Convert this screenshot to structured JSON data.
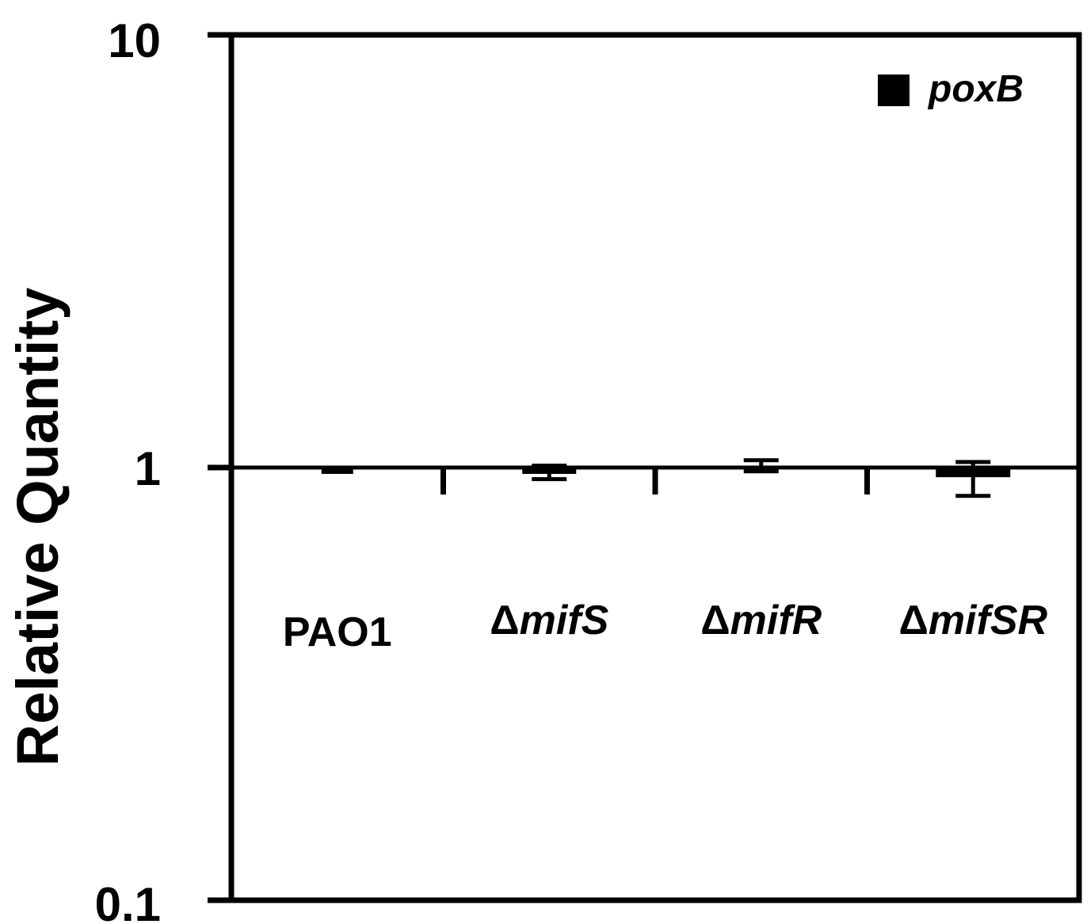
{
  "chart_data": {
    "type": "bar",
    "scale": "log",
    "ylim": [
      0.1,
      10
    ],
    "yticks": [
      {
        "value": 10,
        "label": "10"
      },
      {
        "value": 1,
        "label": "1"
      },
      {
        "value": 0.1,
        "label": "0.1"
      }
    ],
    "ylabel": "Relative Quantity",
    "xlabel": "",
    "title": "",
    "baseline": 1,
    "categories": [
      {
        "prefix": "",
        "name": "PAO1",
        "italic": false
      },
      {
        "prefix": "Δ",
        "name": "mifS",
        "italic": true
      },
      {
        "prefix": "Δ",
        "name": "mifR",
        "italic": true
      },
      {
        "prefix": "Δ",
        "name": "mifSR",
        "italic": true
      }
    ],
    "series": [
      {
        "name": "poxB",
        "color": "#000000",
        "values": [
          1.0,
          0.98,
          1.0,
          0.95
        ],
        "err_low": [
          1.0,
          0.94,
          0.98,
          0.86
        ],
        "err_high": [
          1.0,
          1.01,
          1.04,
          1.03
        ]
      }
    ],
    "legend": {
      "position": "top-right",
      "label": "poxB"
    },
    "grid": false
  }
}
